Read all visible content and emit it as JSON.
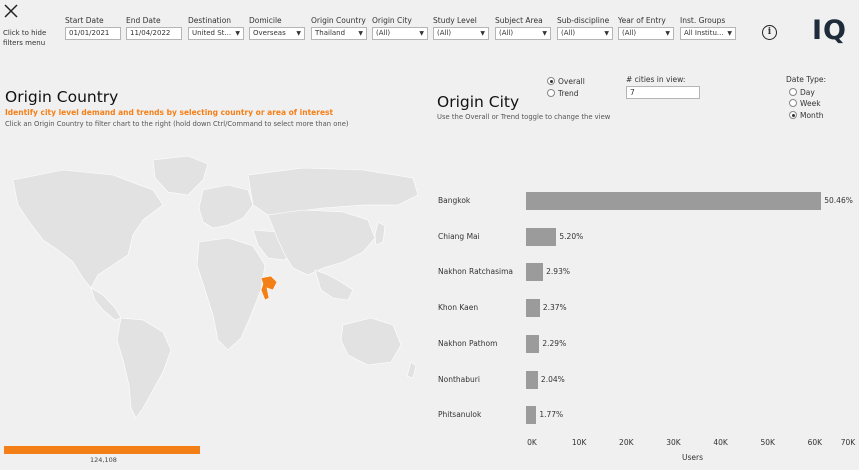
{
  "filters_panel": {
    "hide_text": "Click to hide filters menu"
  },
  "filters": [
    {
      "label": "Start Date",
      "value": "01/01/2021",
      "dropdown": false
    },
    {
      "label": "End Date",
      "value": "11/04/2022",
      "dropdown": false
    },
    {
      "label": "Destination",
      "value": "United St...",
      "dropdown": true
    },
    {
      "label": "Domicile",
      "value": "Overseas",
      "dropdown": true
    },
    {
      "label": "Origin Country",
      "value": "Thailand",
      "dropdown": true
    },
    {
      "label": "Origin City",
      "value": "(All)",
      "dropdown": true
    },
    {
      "label": "Study Level",
      "value": "(All)",
      "dropdown": true
    },
    {
      "label": "Subject Area",
      "value": "(All)",
      "dropdown": true
    },
    {
      "label": "Sub-discipline",
      "value": "(All)",
      "dropdown": true
    },
    {
      "label": "Year of Entry",
      "value": "(All)",
      "dropdown": true
    },
    {
      "label": "Inst. Groups",
      "value": "All Institu...",
      "dropdown": true
    }
  ],
  "info_icon": "i",
  "logo": "IQ",
  "origin_country": {
    "title": "Origin Country",
    "subtitle": "Identify city level demand and trends by selecting country or area of interest",
    "hint": "Click an Origin Country to filter chart to the right (hold down Ctrl/Command to select more than one)",
    "legend_value": "124,108",
    "highlight_color": "#f57f17"
  },
  "origin_city": {
    "title": "Origin City",
    "hint": "Use the Overall or Trend toggle to change the view",
    "view_toggle": [
      {
        "label": "Overall",
        "selected": true
      },
      {
        "label": "Trend",
        "selected": false
      }
    ],
    "cities_in_view_label": "# cities in view:",
    "cities_in_view_value": "7",
    "date_type_label": "Date Type:",
    "date_type": [
      {
        "label": "Day",
        "selected": false
      },
      {
        "label": "Week",
        "selected": false
      },
      {
        "label": "Month",
        "selected": true
      }
    ]
  },
  "chart_data": {
    "type": "bar",
    "orientation": "horizontal",
    "categories": [
      "Bangkok",
      "Chiang Mai",
      "Nakhon Ratchasima",
      "Khon Kaen",
      "Nakhon Pathom",
      "Nonthaburi",
      "Phitsanulok"
    ],
    "values": [
      62630,
      6450,
      3640,
      2940,
      2840,
      2530,
      2200
    ],
    "data_labels": [
      "50.46%",
      "5.20%",
      "2.93%",
      "2.37%",
      "2.29%",
      "2.04%",
      "1.77%"
    ],
    "xlabel": "Users",
    "xticks": [
      "0K",
      "10K",
      "20K",
      "30K",
      "40K",
      "50K",
      "60K",
      "70K"
    ],
    "xlim": [
      0,
      70000
    ],
    "bar_color": "#9b9b9b"
  }
}
